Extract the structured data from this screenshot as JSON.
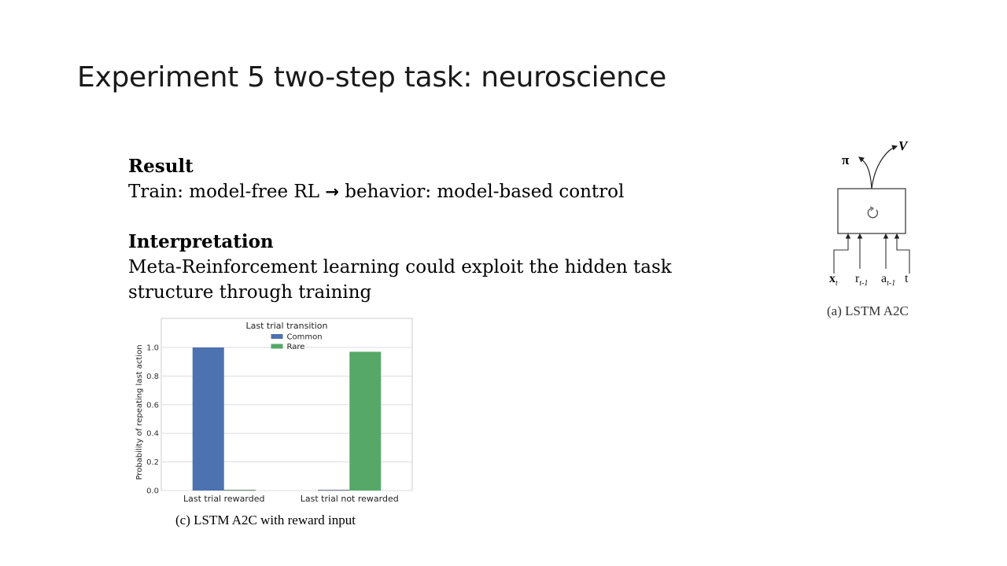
{
  "slide": {
    "title": "Experiment 5 two-step task: neuroscience",
    "result_heading": "Result",
    "result_text_a": "Train: model-free RL",
    "result_arrow": "→",
    "result_text_b": "behavior: model-based control",
    "interpretation_heading": "Interpretation",
    "interpretation_text": "Meta-Reinforcement learning could exploit the hidden task structure through training"
  },
  "chart_caption": "(c) LSTM A2C with reward input",
  "chart_data": {
    "type": "bar",
    "title": "",
    "legend_title": "Last trial transition",
    "legend_position": "top-center",
    "categories": [
      "Last trial rewarded",
      "Last trial not rewarded"
    ],
    "series": [
      {
        "name": "Common",
        "color": "#4c72b0",
        "values": [
          1.0,
          0.0
        ]
      },
      {
        "name": "Rare",
        "color": "#55a868",
        "values": [
          0.0,
          0.97
        ]
      }
    ],
    "xlabel": "",
    "ylabel": "Probability of repeating last action",
    "ylim": [
      0,
      1.0
    ],
    "yticks": [
      "0.0",
      "0.2",
      "0.4",
      "0.6",
      "0.8",
      "1.0"
    ],
    "grid": true
  },
  "diagram": {
    "caption": "(a) LSTM A2C",
    "outputs": [
      "π",
      "V"
    ],
    "inputs": [
      {
        "main": "x",
        "sub": "t"
      },
      {
        "main": "r",
        "sub": "t-1"
      },
      {
        "main": "a",
        "sub": "t-1"
      },
      {
        "main": "t",
        "sub": ""
      }
    ],
    "cell_icon": "recurrent-cycle-icon"
  }
}
